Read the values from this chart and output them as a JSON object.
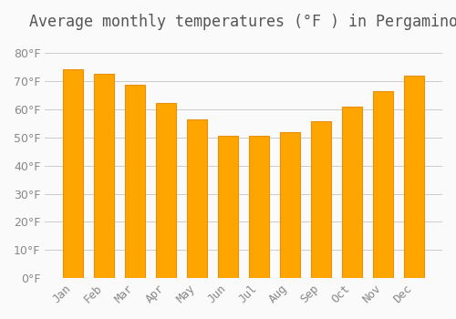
{
  "title": "Average monthly temperatures (°F ) in Pergamino",
  "months": [
    "Jan",
    "Feb",
    "Mar",
    "Apr",
    "May",
    "Jun",
    "Jul",
    "Aug",
    "Sep",
    "Oct",
    "Nov",
    "Dec"
  ],
  "values": [
    74.3,
    72.5,
    68.9,
    62.2,
    56.5,
    50.5,
    50.5,
    52.0,
    55.9,
    61.0,
    66.5,
    72.0
  ],
  "bar_color": "#FFA500",
  "bar_edge_color": "#E8900A",
  "background_color": "#FAFAFA",
  "grid_color": "#CCCCCC",
  "title_color": "#555555",
  "tick_color": "#888888",
  "ylim": [
    0,
    85
  ],
  "yticks": [
    0,
    10,
    20,
    30,
    40,
    50,
    60,
    70,
    80
  ],
  "title_fontsize": 12,
  "tick_fontsize": 9,
  "bar_width": 0.65
}
